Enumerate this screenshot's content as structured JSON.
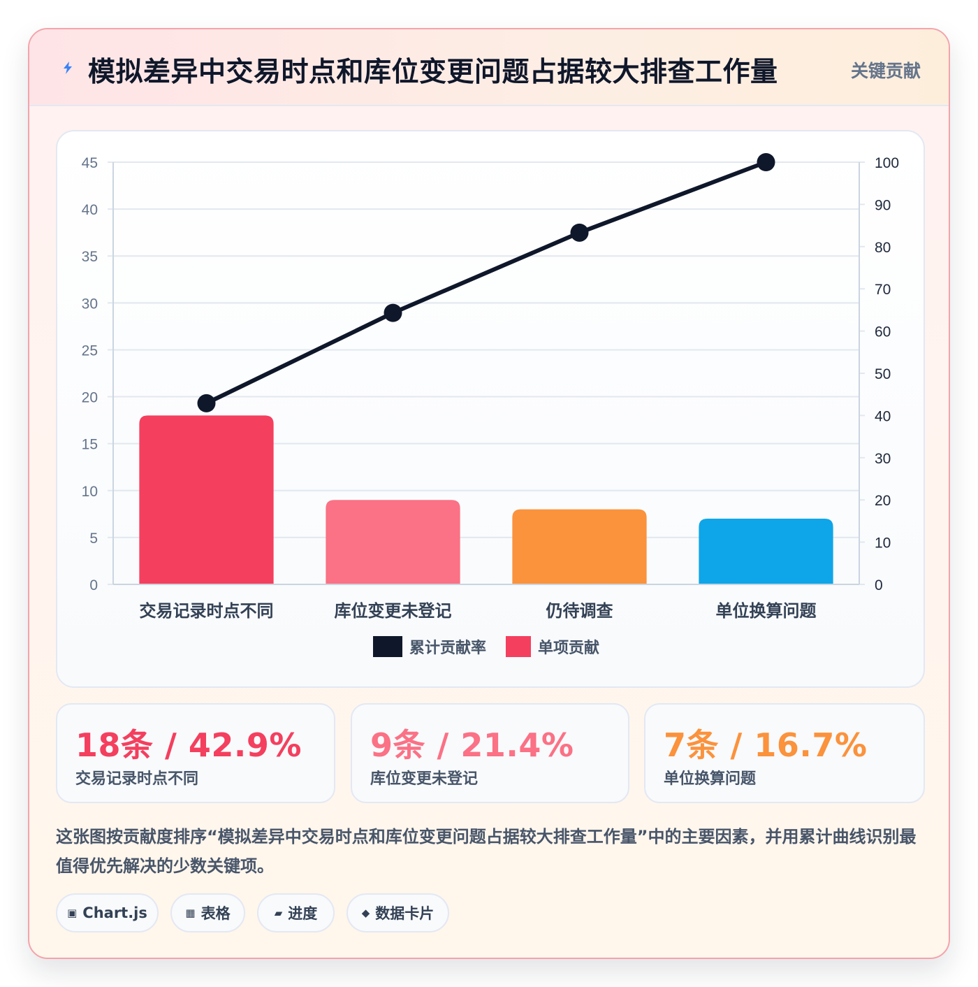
{
  "header": {
    "title": "模拟差异中交易时点和库位变更问题占据较大排查工作量",
    "badge": "关键贡献"
  },
  "chart_data": {
    "type": "bar",
    "categories": [
      "交易记录时点不同",
      "库位变更未登记",
      "仍待调查",
      "单位换算问题"
    ],
    "series": [
      {
        "name": "单项贡献",
        "type": "bar",
        "axis": "left",
        "values": [
          18,
          9,
          8,
          7
        ]
      },
      {
        "name": "累计贡献率",
        "type": "line",
        "axis": "right",
        "values": [
          42.9,
          64.3,
          83.3,
          100
        ]
      }
    ],
    "bar_colors": [
      "#f43f5e",
      "#fb7185",
      "#fb923c",
      "#0ea5e9"
    ],
    "line_color": "#0f172a",
    "y_left": {
      "min": 0,
      "max": 45,
      "ticks": [
        0,
        5,
        10,
        15,
        20,
        25,
        30,
        35,
        40,
        45
      ]
    },
    "y_right": {
      "min": 0,
      "max": 100,
      "ticks": [
        0,
        10,
        20,
        30,
        40,
        50,
        60,
        70,
        80,
        90,
        100
      ]
    },
    "legend": {
      "position": "bottom",
      "items": [
        {
          "label": "累计贡献率",
          "color": "#0f172a"
        },
        {
          "label": "单项贡献",
          "color": "#f43f5e"
        }
      ]
    },
    "grid": true
  },
  "stats": [
    {
      "value": "18条 / 42.9%",
      "label": "交易记录时点不同",
      "color": "#f43f5e"
    },
    {
      "value": "9条 / 21.4%",
      "label": "库位变更未登记",
      "color": "#fb7185"
    },
    {
      "value": "7条 / 16.7%",
      "label": "单位换算问题",
      "color": "#fb923c"
    }
  ],
  "description": "这张图按贡献度排序“模拟差异中交易时点和库位变更问题占据较大排查工作量”中的主要因素，并用累计曲线识别最值得优先解决的少数关键项。",
  "chips": [
    {
      "icon": "▣",
      "icon_name": "chart-icon",
      "label": "Chart.js"
    },
    {
      "icon": "▦",
      "icon_name": "table-icon",
      "label": "表格"
    },
    {
      "icon": "▰",
      "icon_name": "progress-icon",
      "label": "进度"
    },
    {
      "icon": "◆",
      "icon_name": "card-icon",
      "label": "数据卡片"
    }
  ]
}
